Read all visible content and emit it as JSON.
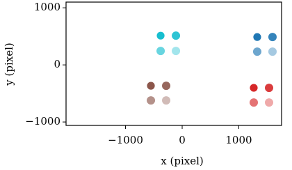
{
  "chart_data": {
    "type": "scatter",
    "x_label": "x (pixel)",
    "y_label": "y (pixel)",
    "xlim": [
      -2050,
      1755
    ],
    "ylim": [
      -1060,
      1100
    ],
    "xticks": [
      {
        "value": -1000,
        "label": "−1000"
      },
      0,
      1000
    ],
    "yticks": [
      {
        "value": -1000,
        "label": "−1000"
      },
      0,
      1000
    ],
    "alpha": [
      1,
      0.9,
      0.65,
      0.4
    ],
    "series": [
      {
        "color": "#17becf",
        "x": [
          -380,
          -110,
          -380,
          -110
        ],
        "values": [
          512,
          512,
          244,
          244
        ]
      },
      {
        "color": "#1f77b4",
        "x": [
          1325,
          1595,
          1325,
          1595
        ],
        "values": [
          488,
          488,
          232,
          232
        ]
      },
      {
        "color": "#8c564b",
        "x": [
          -552,
          -282,
          -552,
          -282
        ],
        "values": [
          -366,
          -366,
          -622,
          -622
        ]
      },
      {
        "color": "#d62728",
        "x": [
          1264,
          1534,
          1264,
          1534
        ],
        "values": [
          -402,
          -402,
          -659,
          -659
        ]
      }
    ]
  }
}
